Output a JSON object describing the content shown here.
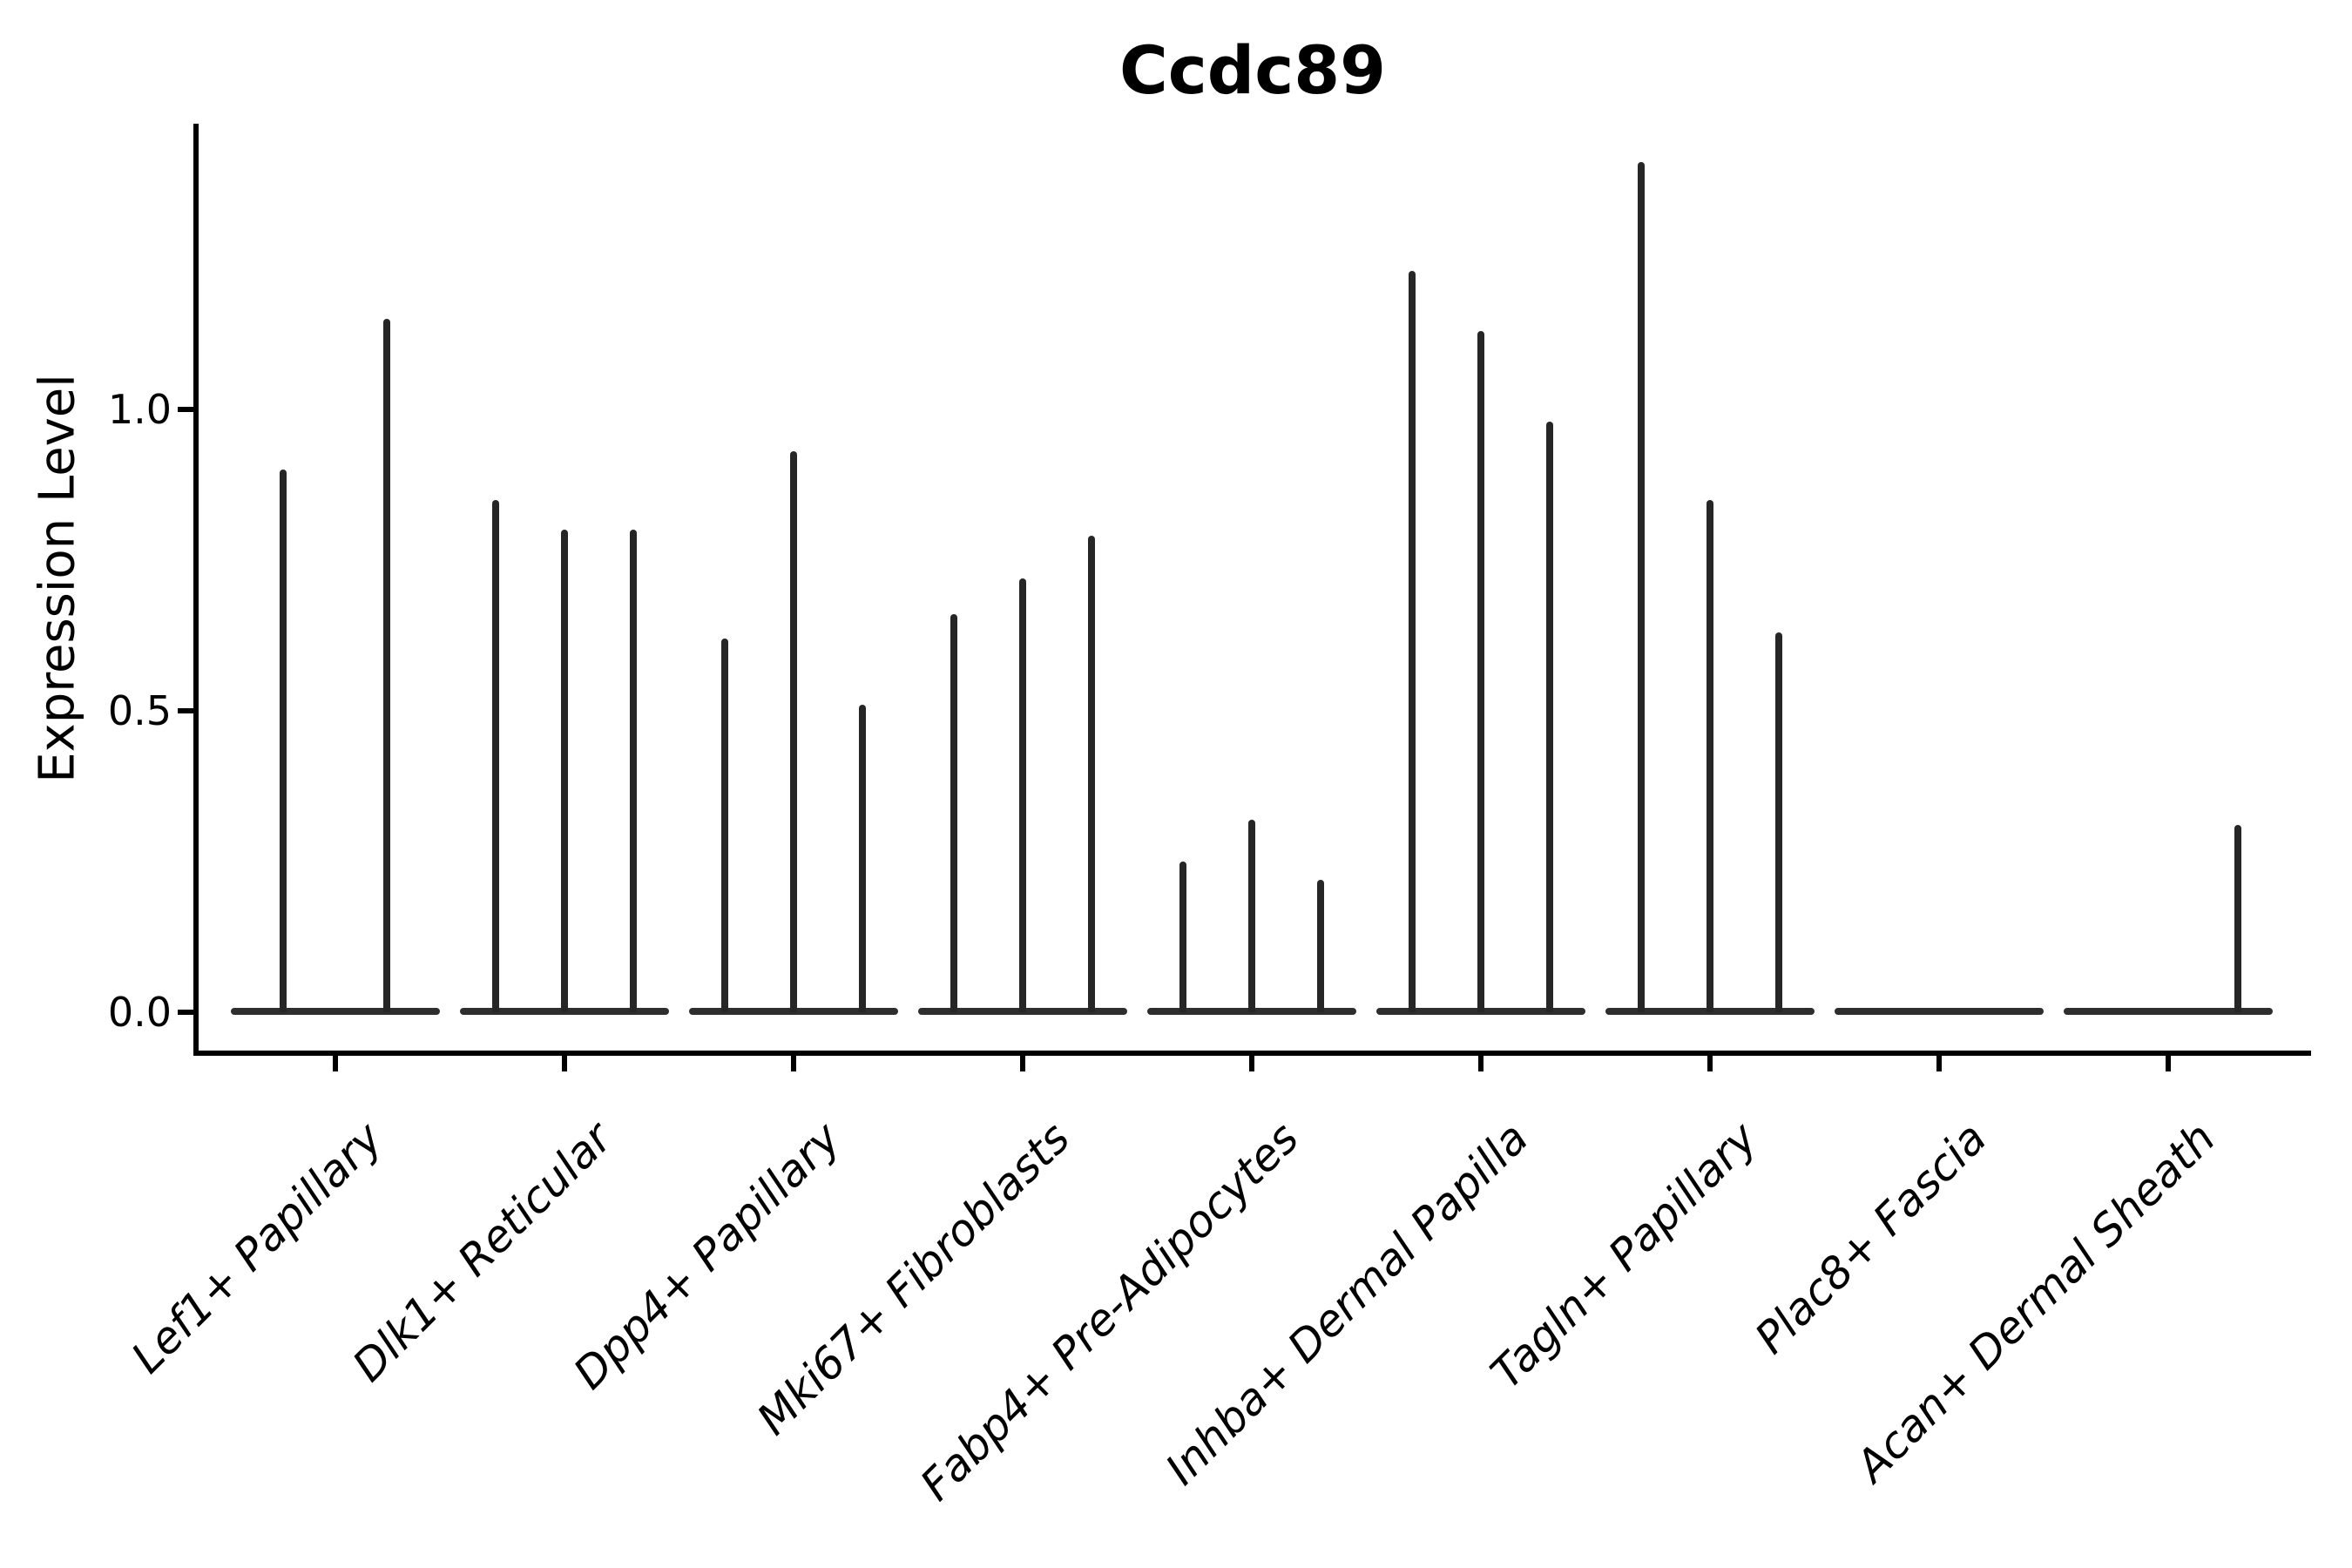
{
  "title": "Ccdc89",
  "ylabel": "Expression Level",
  "colors": {
    "background": "#ffffff",
    "axis": "#000000",
    "violin": "#262626",
    "violin_base": "#2e2e2e"
  },
  "chart_data": {
    "type": "violin",
    "title": "Ccdc89",
    "xlabel": "",
    "ylabel": "Expression Level",
    "ylim": [
      -0.07,
      1.47
    ],
    "yticks": [
      {
        "value": 0.0,
        "label": "0.0"
      },
      {
        "value": 0.5,
        "label": "0.5"
      },
      {
        "value": 1.0,
        "label": "1.0"
      }
    ],
    "grid": false,
    "legend": "none",
    "categories": [
      "Lef1+ Papillary",
      "Dlk1+ Reticular",
      "Dpp4+ Papillary",
      "Mki67+ Fibroblasts",
      "Fabp4+ Pre-Adipocytes",
      "Inhba+ Dermal Papilla",
      "Tagln+ Papillary",
      "Plac8+ Fascia",
      "Acan+ Dermal Sheath"
    ],
    "groups": [
      {
        "label": "Lef1+ Papillary",
        "spikes": [
          {
            "offset": -60,
            "max": 0.9
          },
          {
            "offset": 59,
            "max": 1.15
          }
        ]
      },
      {
        "label": "Dlk1+ Reticular",
        "spikes": [
          {
            "offset": -79,
            "max": 0.85
          },
          {
            "offset": 0,
            "max": 0.8
          },
          {
            "offset": 79,
            "max": 0.8
          }
        ]
      },
      {
        "label": "Dpp4+ Papillary",
        "spikes": [
          {
            "offset": -79,
            "max": 0.62
          },
          {
            "offset": 0,
            "max": 0.93
          },
          {
            "offset": 79,
            "max": 0.51
          }
        ]
      },
      {
        "label": "Mki67+ Fibroblasts",
        "spikes": [
          {
            "offset": -79,
            "max": 0.66
          },
          {
            "offset": 0,
            "max": 0.72
          },
          {
            "offset": 79,
            "max": 0.79
          }
        ]
      },
      {
        "label": "Fabp4+ Pre-Adipocytes",
        "spikes": [
          {
            "offset": -79,
            "max": 0.25
          },
          {
            "offset": 0,
            "max": 0.32
          },
          {
            "offset": 79,
            "max": 0.22
          }
        ]
      },
      {
        "label": "Inhba+ Dermal Papilla",
        "spikes": [
          {
            "offset": -79,
            "max": 1.23
          },
          {
            "offset": 0,
            "max": 1.13
          },
          {
            "offset": 79,
            "max": 0.98
          }
        ]
      },
      {
        "label": "Tagln+ Papillary",
        "spikes": [
          {
            "offset": -79,
            "max": 1.41
          },
          {
            "offset": 0,
            "max": 0.85
          },
          {
            "offset": 79,
            "max": 0.63
          }
        ]
      },
      {
        "label": "Plac8+ Fascia",
        "spikes": []
      },
      {
        "label": "Acan+ Dermal Sheath",
        "spikes": [
          {
            "offset": 80,
            "max": 0.31
          }
        ]
      }
    ]
  }
}
